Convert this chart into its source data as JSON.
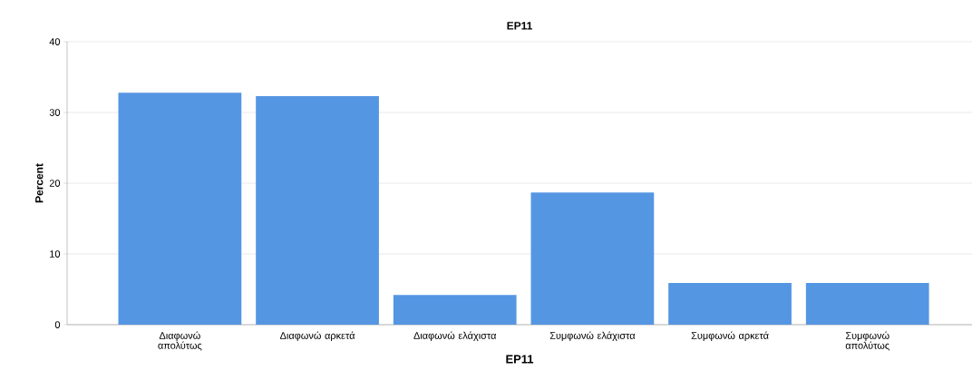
{
  "chart_data": {
    "type": "bar",
    "title": "EP11",
    "xlabel": "EP11",
    "ylabel": "Percent",
    "categories": [
      "Διαφωνώ απολύτως",
      "Διαφωνώ αρκετά",
      "Διαφωνώ ελάχιστα",
      "Συμφωνώ ελάχιστα",
      "Συμφωνώ αρκετά",
      "Συμφωνώ απολύτως"
    ],
    "values": [
      32.8,
      32.3,
      4.2,
      18.7,
      5.9,
      5.9
    ],
    "color": "#5596e3",
    "ylim": [
      0,
      40
    ],
    "yticks": [
      0,
      10,
      20,
      30,
      40
    ],
    "grid": "y"
  }
}
